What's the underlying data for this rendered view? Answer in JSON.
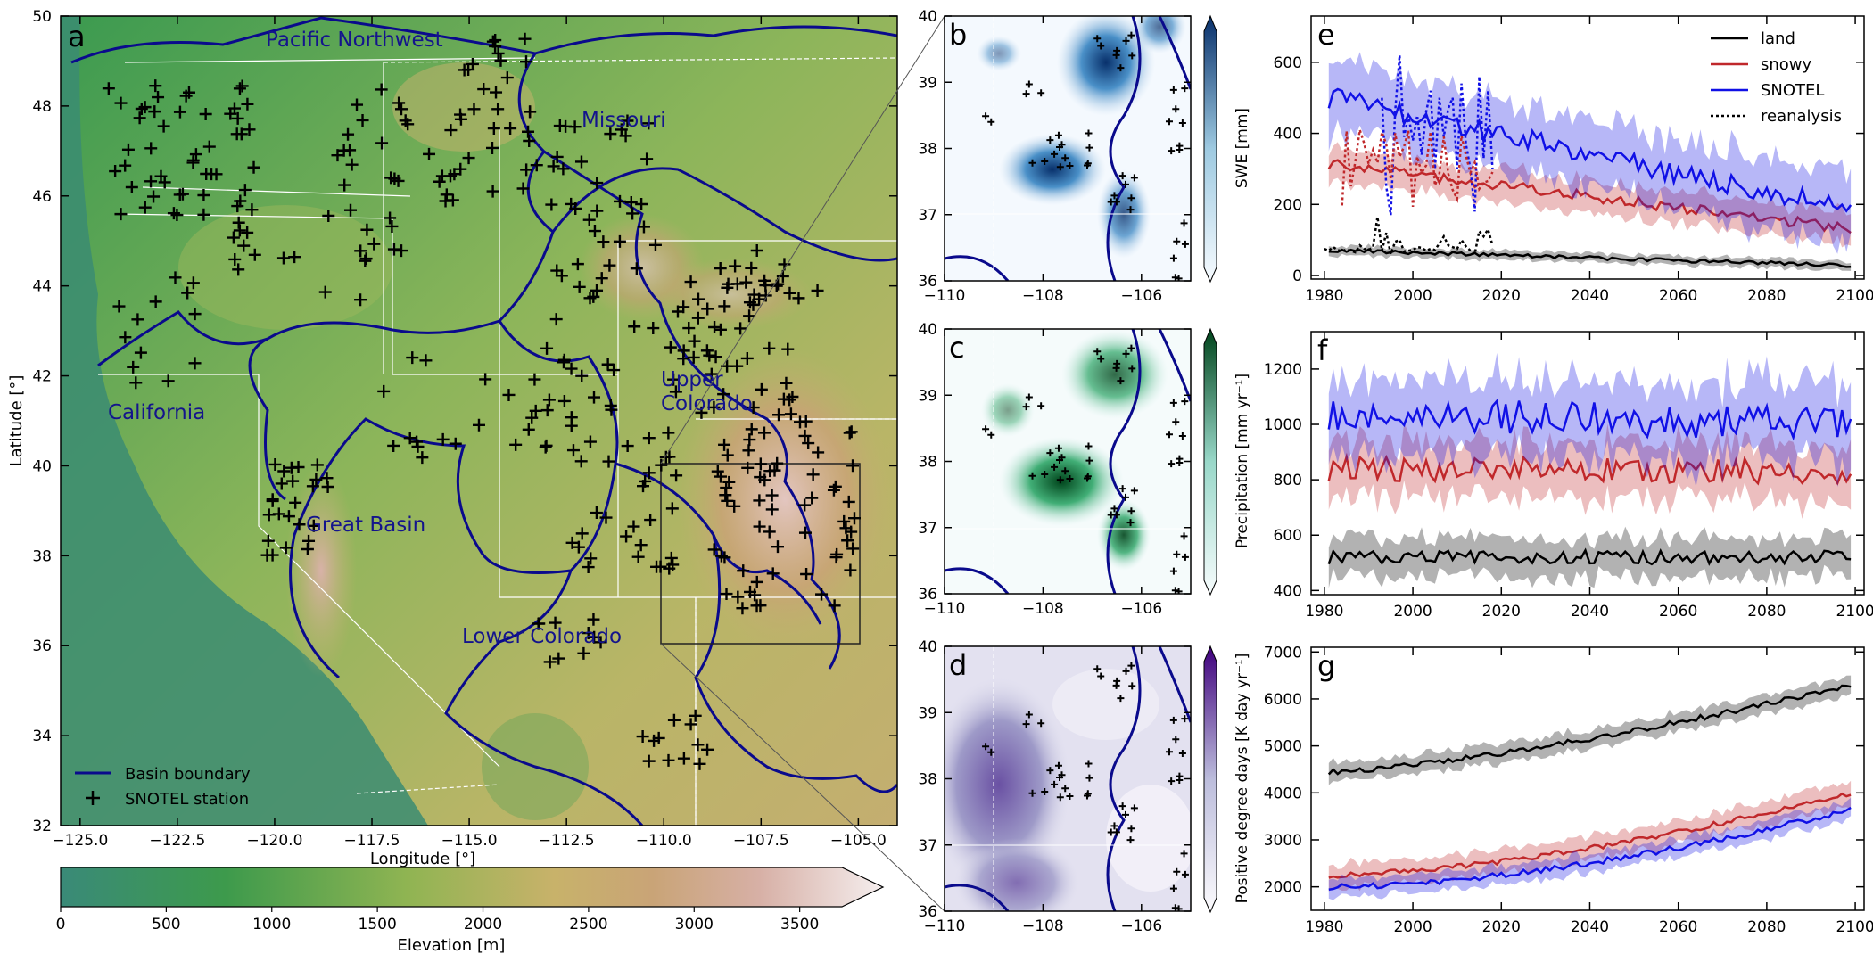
{
  "chart_data": [
    {
      "panel": "a",
      "type": "map",
      "xlabel": "Longitude [°]",
      "ylabel": "Latitude [°]",
      "xlim": [
        -125.5,
        -104
      ],
      "ylim": [
        32,
        50
      ],
      "xticks": [
        "−125.0",
        "−122.5",
        "−120.0",
        "−117.5",
        "−115.0",
        "−112.5",
        "−110.0",
        "−107.5",
        "−105.0"
      ],
      "yticks": [
        "32",
        "34",
        "36",
        "38",
        "40",
        "42",
        "44",
        "46",
        "48",
        "50"
      ],
      "region_labels": [
        "Pacific Northwest",
        "Missouri",
        "California",
        "Upper\nColorado",
        "Great Basin",
        "Lower Colorado"
      ],
      "legend": [
        "Basin boundary",
        "SNOTEL station"
      ],
      "legend_position": "lower-left",
      "inset_box": {
        "lon": [
          -110,
          -105
        ],
        "lat": [
          36,
          40
        ]
      },
      "colorbar": {
        "label": "Elevation [m]",
        "ticks": [
          "0",
          "500",
          "1000",
          "1500",
          "2000",
          "2500",
          "3000",
          "3500"
        ],
        "range": [
          0,
          3700
        ],
        "orientation": "horizontal",
        "extend": "max"
      },
      "colors": {
        "basin": "#0a0a8c",
        "label": "#14148c",
        "station": "#000000"
      }
    },
    {
      "panel": "b",
      "type": "heatmap",
      "xlim": [
        -110,
        -105
      ],
      "ylim": [
        36,
        40
      ],
      "xticks": [
        "−110",
        "−108",
        "−106"
      ],
      "yticks": [
        "36",
        "37",
        "38",
        "39",
        "40"
      ],
      "colorbar": {
        "label": "SWE [mm]",
        "colormap": "Blues",
        "extend": "both"
      }
    },
    {
      "panel": "c",
      "type": "heatmap",
      "xlim": [
        -110,
        -105
      ],
      "ylim": [
        36,
        40
      ],
      "xticks": [
        "−110",
        "−108",
        "−106"
      ],
      "yticks": [
        "36",
        "37",
        "38",
        "39",
        "40"
      ],
      "colorbar": {
        "label": "Precipitation [mm yr⁻¹]",
        "colormap": "BuGn",
        "extend": "both"
      }
    },
    {
      "panel": "d",
      "type": "heatmap",
      "xlim": [
        -110,
        -105
      ],
      "ylim": [
        36,
        40
      ],
      "xticks": [
        "−110",
        "−108",
        "−106"
      ],
      "yticks": [
        "36",
        "37",
        "38",
        "39",
        "40"
      ],
      "colorbar": {
        "label": "Positive degree days [K day yr⁻¹]",
        "colormap": "Purples",
        "extend": "both"
      }
    },
    {
      "panel": "e",
      "type": "line",
      "xlim": [
        1977,
        2102
      ],
      "ylim": [
        -10,
        730
      ],
      "xticks": [
        "1980",
        "2000",
        "2020",
        "2040",
        "2060",
        "2080",
        "2100"
      ],
      "yticks": [
        "0",
        "200",
        "400",
        "600"
      ],
      "legend": [
        "land",
        "snowy",
        "SNOTEL",
        "reanalysis"
      ],
      "legend_position": "top-right",
      "series": [
        {
          "name": "land",
          "color": "#000000",
          "start": 72,
          "end": 28,
          "noise": 5,
          "band": 13
        },
        {
          "name": "snowy",
          "color": "#c0282b",
          "start": 315,
          "end": 130,
          "noise": 15,
          "band": 45
        },
        {
          "name": "SNOTEL",
          "color": "#1010e6",
          "start": 500,
          "end": 185,
          "noise": 30,
          "band": 100
        }
      ],
      "reanalysis": [
        {
          "years": [
            1980,
            1981,
            1982,
            1983,
            1984,
            1985,
            1986,
            1987,
            1988,
            1989,
            1990,
            1991,
            1992,
            1993,
            1994,
            1995,
            1996,
            1997,
            1998,
            1999,
            2000,
            2001,
            2002,
            2003,
            2004,
            2005,
            2006,
            2007,
            2008,
            2009,
            2010,
            2011,
            2012,
            2013,
            2014,
            2015,
            2016,
            2017,
            2018
          ],
          "values": [
            75,
            70,
            80,
            72,
            68,
            74,
            70,
            65,
            85,
            75,
            72,
            80,
            165,
            70,
            120,
            60,
            95,
            100,
            68,
            70,
            72,
            80,
            78,
            70,
            75,
            72,
            90,
            110,
            85,
            80,
            75,
            100,
            82,
            70,
            60,
            125,
            110,
            130,
            85
          ]
        },
        {
          "years": [
            1993,
            1994,
            1995,
            1996,
            1997,
            1998,
            1999,
            2000,
            2001,
            2002,
            2003,
            2004,
            2005,
            2006,
            2007,
            2008,
            2009,
            2010,
            2011,
            2012,
            2013,
            2014,
            2015,
            2016,
            2017,
            2018
          ],
          "values": [
            500,
            250,
            170,
            460,
            620,
            390,
            450,
            380,
            450,
            340,
            460,
            520,
            300,
            500,
            390,
            470,
            500,
            300,
            540,
            370,
            300,
            180,
            560,
            330,
            520,
            300
          ]
        }
      ]
    },
    {
      "panel": "f",
      "type": "line",
      "xlim": [
        1977,
        2102
      ],
      "ylim": [
        385,
        1335
      ],
      "xticks": [
        "1980",
        "2000",
        "2020",
        "2040",
        "2060",
        "2080",
        "2100"
      ],
      "yticks": [
        "400",
        "600",
        "800",
        "1000",
        "1200"
      ],
      "series": [
        {
          "name": "land",
          "color": "#000000",
          "start": 520,
          "end": 520,
          "noise": 25,
          "band": 70
        },
        {
          "name": "snowy",
          "color": "#c0282b",
          "start": 840,
          "end": 830,
          "noise": 45,
          "band": 100
        },
        {
          "name": "SNOTEL",
          "color": "#1010e6",
          "start": 1040,
          "end": 1000,
          "noise": 60,
          "band": 140
        }
      ]
    },
    {
      "panel": "g",
      "type": "line",
      "xlim": [
        1977,
        2102
      ],
      "ylim": [
        1500,
        7100
      ],
      "xticks": [
        "1980",
        "2000",
        "2020",
        "2040",
        "2060",
        "2080",
        "2100"
      ],
      "yticks": [
        "2000",
        "3000",
        "4000",
        "5000",
        "6000",
        "7000"
      ],
      "series": [
        {
          "name": "land",
          "color": "#000000",
          "start": 4450,
          "end": 6300,
          "noise": 60,
          "band": 200,
          "curve": 1.4
        },
        {
          "name": "snowy",
          "color": "#c0282b",
          "start": 2250,
          "end": 4000,
          "noise": 60,
          "band": 250,
          "curve": 1.6
        },
        {
          "name": "SNOTEL",
          "color": "#1010e6",
          "start": 2000,
          "end": 3650,
          "noise": 60,
          "band": 200,
          "curve": 1.7
        }
      ]
    }
  ]
}
